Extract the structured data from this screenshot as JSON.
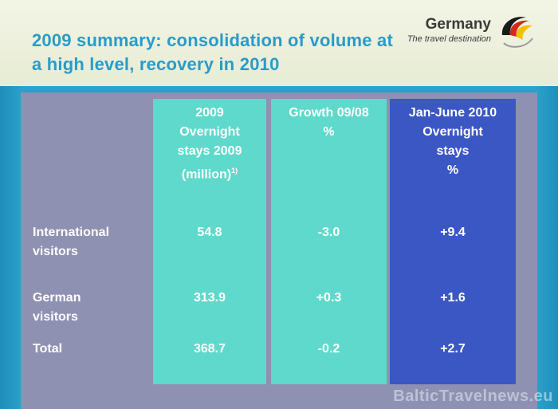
{
  "slide": {
    "title": "2009 summary: consolidation of volume at a high level, recovery in 2010"
  },
  "logo": {
    "name": "Germany",
    "tagline": "The travel destination",
    "icon": "flag-swirl-icon"
  },
  "table": {
    "headers": {
      "col1": [
        "2009",
        "Overnight",
        "stays 2009",
        "(million)"
      ],
      "col1_footnote": "1)",
      "col2": [
        "Growth 09/08",
        "%"
      ],
      "col3": [
        "Jan-June 2010",
        "Overnight",
        "stays",
        "%"
      ]
    },
    "rows": [
      {
        "label": [
          "International",
          "visitors"
        ],
        "stays": "54.8",
        "growth": "-3.0",
        "h1_2010": "+9.4"
      },
      {
        "label": [
          "German",
          "visitors"
        ],
        "stays": "313.9",
        "growth": "+0.3",
        "h1_2010": "+1.6"
      },
      {
        "label": [
          "Total"
        ],
        "stays": "368.7",
        "growth": "-0.2",
        "h1_2010": "+2.7"
      }
    ]
  },
  "watermark": "BalticTravelnews.eu",
  "colors": {
    "title": "#2a9bc8",
    "teal_column": "#5fd9cb",
    "blue_column": "#3b57c4",
    "panel": "#8e91b2"
  }
}
